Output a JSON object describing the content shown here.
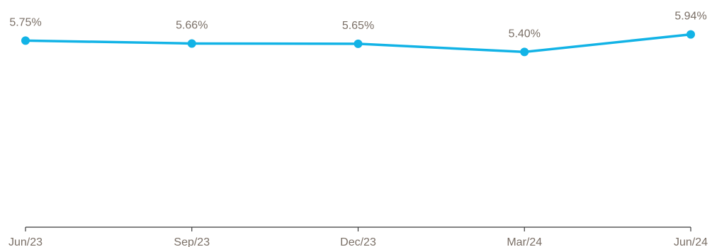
{
  "chart_data": {
    "type": "line",
    "categories": [
      "Jun/23",
      "Sep/23",
      "Dec/23",
      "Mar/24",
      "Jun/24"
    ],
    "series": [
      {
        "values": [
          5.75,
          5.66,
          5.65,
          5.4,
          5.94
        ],
        "labels": [
          "5.75%",
          "5.66%",
          "5.65%",
          "5.40%",
          "5.94%"
        ],
        "color": "#12b3e6"
      }
    ],
    "title": "",
    "xlabel": "",
    "ylabel": "",
    "ylim": [
      0,
      7
    ],
    "grid": false,
    "legend": "none",
    "axis_color": "#3a3a3a",
    "label_color": "#7a6f66"
  }
}
